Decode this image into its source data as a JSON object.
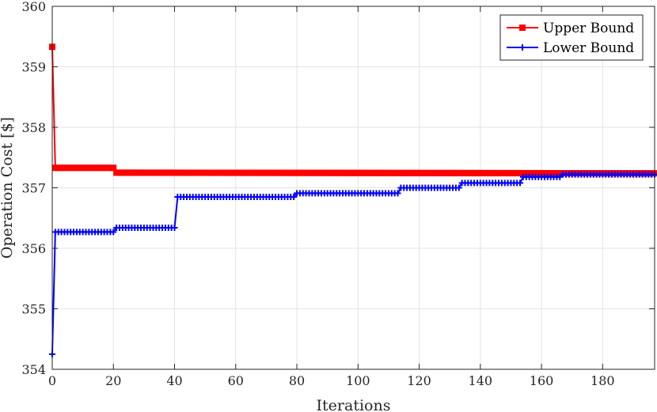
{
  "chart_data": {
    "type": "line",
    "title": "",
    "xlabel": "Iterations",
    "ylabel": "Operation Cost [$]",
    "xlim": [
      0,
      197
    ],
    "ylim": [
      354,
      360
    ],
    "xticks": [
      0,
      20,
      40,
      60,
      80,
      100,
      120,
      140,
      160,
      180
    ],
    "yticks": [
      354,
      355,
      356,
      357,
      358,
      359,
      360
    ],
    "grid": true,
    "legend_position": "top-right",
    "series": [
      {
        "name": "Upper Bound",
        "color": "#ff0000",
        "marker": "square",
        "points": [
          [
            0,
            359.33
          ],
          [
            1,
            357.33
          ],
          [
            20,
            357.33
          ],
          [
            21,
            357.25
          ],
          [
            197,
            357.24
          ]
        ]
      },
      {
        "name": "Lower Bound",
        "color": "#0000ff",
        "marker": "plus",
        "points": [
          [
            0,
            354.25
          ],
          [
            1,
            356.27
          ],
          [
            20,
            356.27
          ],
          [
            21,
            356.34
          ],
          [
            40,
            356.34
          ],
          [
            41,
            356.85
          ],
          [
            79,
            356.85
          ],
          [
            80,
            356.91
          ],
          [
            113,
            356.91
          ],
          [
            114,
            357.0
          ],
          [
            133,
            357.0
          ],
          [
            134,
            357.08
          ],
          [
            153,
            357.08
          ],
          [
            154,
            357.18
          ],
          [
            166,
            357.18
          ],
          [
            167,
            357.22
          ],
          [
            197,
            357.22
          ]
        ]
      }
    ]
  }
}
